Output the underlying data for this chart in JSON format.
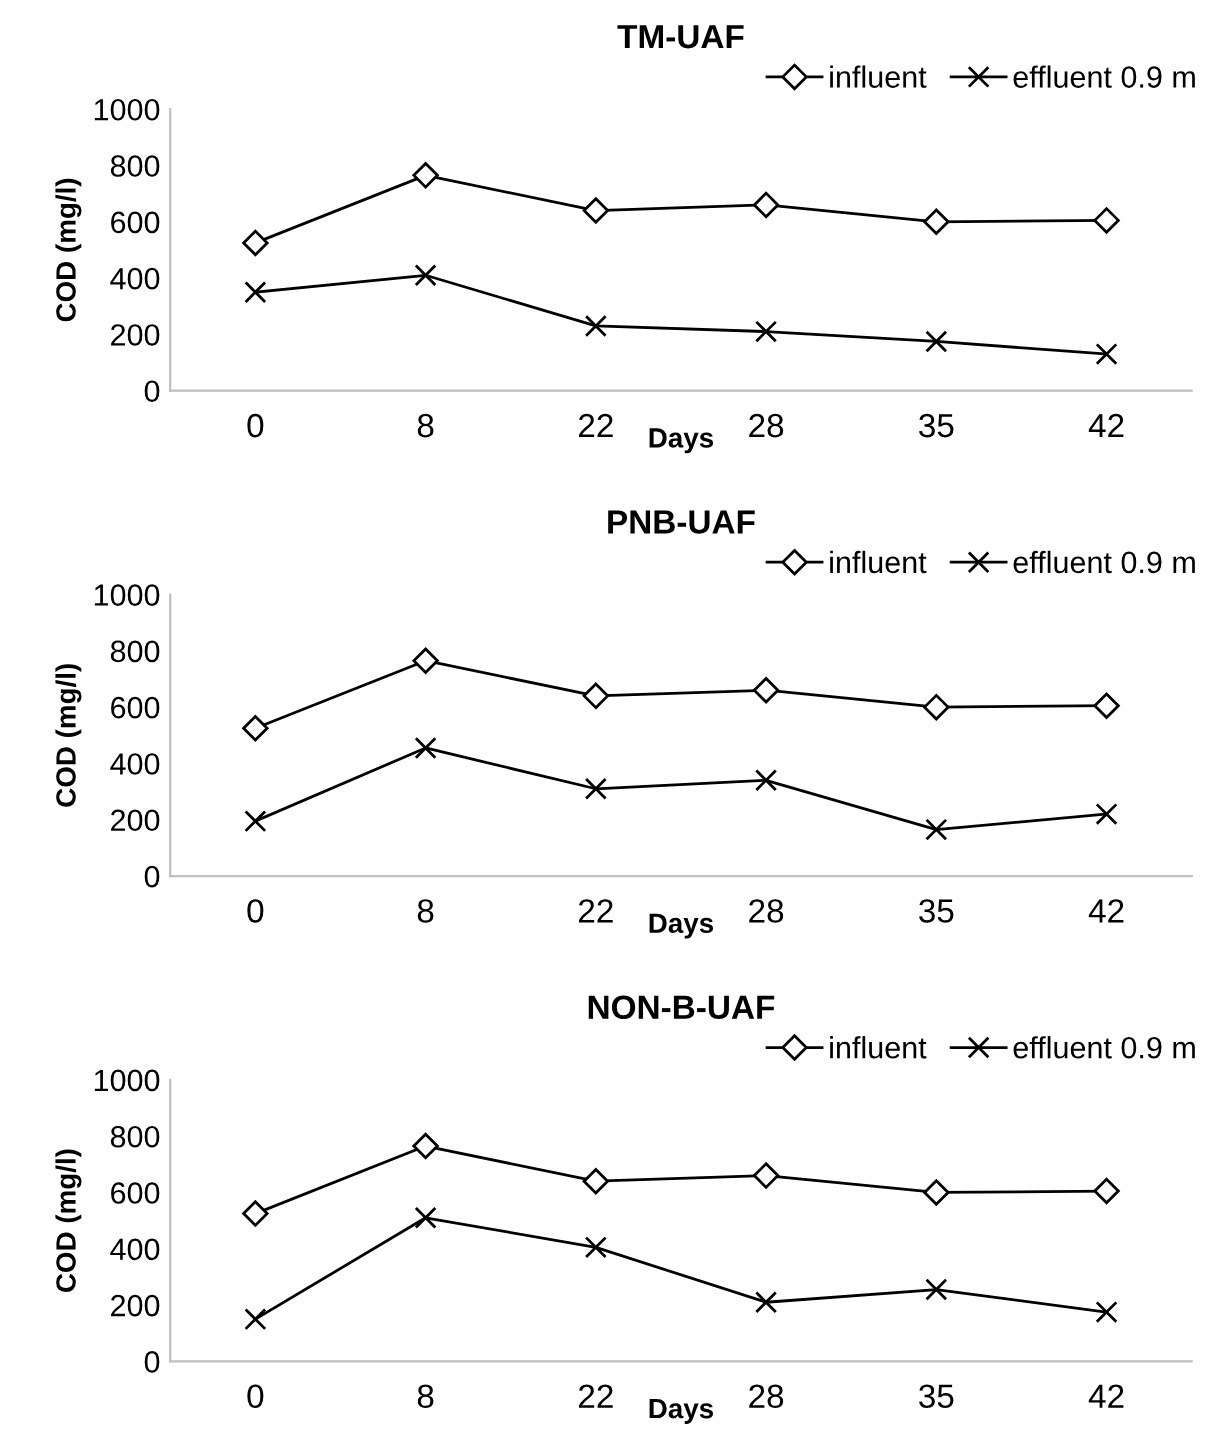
{
  "chart_data": [
    {
      "type": "line",
      "title": "TM-UAF",
      "xlabel": "Days",
      "ylabel": "COD (mg/l)",
      "categories": [
        "0",
        "8",
        "22",
        "28",
        "35",
        "42"
      ],
      "ylim": [
        0,
        1000
      ],
      "yticks": [
        0,
        200,
        400,
        600,
        800,
        1000
      ],
      "grid": false,
      "legend": "top right",
      "series": [
        {
          "name": "influent",
          "color": "#000000",
          "marker": "diamond",
          "values": [
            525,
            765,
            640,
            660,
            600,
            605
          ]
        },
        {
          "name": "effluent 0.9 m",
          "color": "#000000",
          "marker": "cross",
          "values": [
            350,
            410,
            230,
            210,
            175,
            130
          ]
        }
      ]
    },
    {
      "type": "line",
      "title": "PNB-UAF",
      "xlabel": "Days",
      "ylabel": "COD (mg/l)",
      "categories": [
        "0",
        "8",
        "22",
        "28",
        "35",
        "42"
      ],
      "ylim": [
        0,
        1000
      ],
      "yticks": [
        0,
        200,
        400,
        600,
        800,
        1000
      ],
      "grid": false,
      "legend": "top right",
      "series": [
        {
          "name": "influent",
          "color": "#000000",
          "marker": "diamond",
          "values": [
            525,
            765,
            640,
            660,
            600,
            605
          ]
        },
        {
          "name": "effluent 0.9 m",
          "color": "#000000",
          "marker": "cross",
          "values": [
            195,
            455,
            310,
            340,
            165,
            220
          ]
        }
      ]
    },
    {
      "type": "line",
      "title": "NON-B-UAF",
      "xlabel": "Days",
      "ylabel": "COD (mg/l)",
      "categories": [
        "0",
        "8",
        "22",
        "28",
        "35",
        "42"
      ],
      "ylim": [
        0,
        1000
      ],
      "yticks": [
        0,
        200,
        400,
        600,
        800,
        1000
      ],
      "grid": false,
      "legend": "top right",
      "series": [
        {
          "name": "influent",
          "color": "#000000",
          "marker": "diamond",
          "values": [
            525,
            765,
            640,
            660,
            600,
            605
          ]
        },
        {
          "name": "effluent 0.9 m",
          "color": "#000000",
          "marker": "cross",
          "values": [
            150,
            510,
            405,
            210,
            255,
            175
          ]
        }
      ]
    }
  ]
}
